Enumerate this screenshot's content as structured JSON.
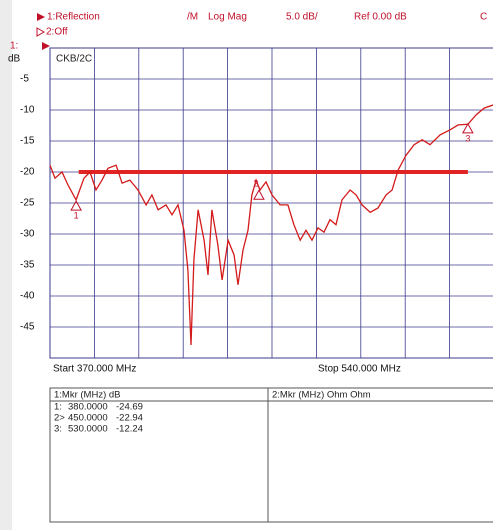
{
  "header": {
    "trace1": "1:Reflection",
    "format_prefix": "/M",
    "format": "Log Mag",
    "scale": "5.0 dB/",
    "ref": "Ref  0.00 dB",
    "extra": "C",
    "trace2": "2:Off"
  },
  "chart_data": {
    "type": "line",
    "axis_channel": "1:",
    "y_unit": "dB",
    "trace_label": "CKB/2C",
    "start_label": "Start 370.000 MHz",
    "stop_label": "Stop 540.000 MHz",
    "xlim": [
      370,
      540
    ],
    "ylim": [
      -50,
      0
    ],
    "xticks": [
      370,
      387,
      404,
      421,
      438,
      455,
      472,
      489,
      506,
      523,
      540
    ],
    "yticks": [
      -5,
      -10,
      -15,
      -20,
      -25,
      -30,
      -35,
      -40,
      -45
    ],
    "grid": true,
    "x": [
      370,
      371.9,
      374.6,
      376.9,
      380,
      383,
      385.3,
      387.6,
      389.9,
      392.2,
      395.3,
      397.6,
      400.6,
      403.7,
      406.8,
      409,
      411.4,
      414.4,
      416.7,
      419,
      421.3,
      422.8,
      424,
      425.1,
      426.7,
      429,
      430.5,
      432,
      434.3,
      435.9,
      438.2,
      440.5,
      442,
      443.9,
      445.8,
      447.3,
      448.9,
      450.4,
      452.7,
      455,
      458.1,
      461.1,
      463.4,
      465.8,
      468,
      470.3,
      472.6,
      474.9,
      477.2,
      479.5,
      481.8,
      484.9,
      487.2,
      489.5,
      492.6,
      495.6,
      498.7,
      501,
      503.3,
      506.3,
      509.4,
      512.5,
      515.5,
      519.4,
      523.2,
      526.3,
      530,
      533.1,
      536.2,
      539.6
    ],
    "series": [
      {
        "color": "#d41a1a",
        "values": [
          -18.9,
          -21,
          -20,
          -22.1,
          -24.5,
          -21,
          -20,
          -22.9,
          -21.3,
          -19.4,
          -18.9,
          -21.8,
          -21.3,
          -22.9,
          -25.3,
          -23.7,
          -26.1,
          -25.3,
          -26.9,
          -25.3,
          -29.4,
          -35.8,
          -47.9,
          -34.2,
          -26.1,
          -31,
          -36.6,
          -26.1,
          -31.8,
          -37.4,
          -31,
          -33.4,
          -38.2,
          -32.6,
          -29.4,
          -23.7,
          -21.3,
          -22.9,
          -21.6,
          -23.7,
          -25.3,
          -25.3,
          -28.5,
          -31,
          -29.4,
          -31,
          -29,
          -29.7,
          -27.7,
          -28.5,
          -24.5,
          -22.9,
          -23.7,
          -25.3,
          -26.5,
          -25.8,
          -23.7,
          -22.9,
          -19.7,
          -17.3,
          -15.6,
          -14.8,
          -15.6,
          -14,
          -13.2,
          -12.4,
          -12.3,
          -10.8,
          -9.7,
          -9.2
        ]
      }
    ],
    "limit_line": {
      "y": -20,
      "x": [
        381,
        530
      ],
      "color": "#e02424"
    },
    "markers": [
      {
        "name": "1",
        "prefix": "1:",
        "x": 380,
        "x_label": "380.0000",
        "y": -24.69
      },
      {
        "name": "2",
        "prefix": "2>",
        "x": 450,
        "x_label": "450.0000",
        "y": -22.94
      },
      {
        "name": "3",
        "prefix": "3:",
        "x": 530,
        "x_label": "530.0000",
        "y": -12.24
      }
    ]
  },
  "table": {
    "left_header": "1:Mkr (MHz)   dB",
    "right_header": "2:Mkr (MHz)   Ohm     Ohm"
  }
}
